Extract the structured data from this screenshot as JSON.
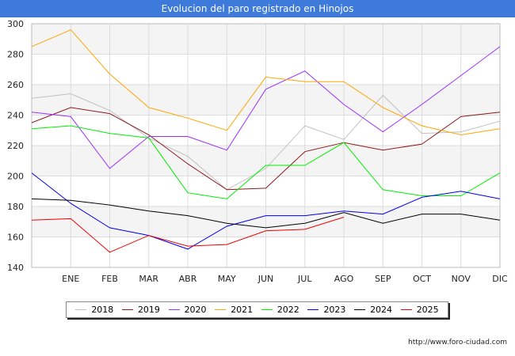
{
  "chart_data": {
    "type": "line",
    "title": "Evolucion del paro registrado en Hinojos",
    "categories": [
      "",
      "ENE",
      "FEB",
      "MAR",
      "ABR",
      "MAY",
      "JUN",
      "JUL",
      "AGO",
      "SEP",
      "OCT",
      "NOV",
      "DIC"
    ],
    "ylim": [
      140,
      300
    ],
    "yticks": [
      140,
      160,
      180,
      200,
      220,
      240,
      260,
      280,
      300
    ],
    "grid": true,
    "legend_position": "bottom",
    "series": [
      {
        "name": "2018",
        "color": "#c0c0c0",
        "values": [
          251,
          254,
          243,
          225,
          213,
          191,
          205,
          233,
          224,
          253,
          228,
          229,
          236
        ]
      },
      {
        "name": "2019",
        "color": "#8b1a1a",
        "values": [
          235,
          245,
          241,
          227,
          208,
          191,
          192,
          216,
          222,
          217,
          221,
          239,
          242
        ]
      },
      {
        "name": "2020",
        "color": "#9b30ff",
        "values": [
          242,
          239,
          205,
          226,
          226,
          217,
          257,
          269,
          247,
          229,
          247,
          266,
          285
        ]
      },
      {
        "name": "2021",
        "color": "#ffa500",
        "values": [
          285,
          296,
          267,
          245,
          238,
          230,
          265,
          262,
          262,
          245,
          233,
          227,
          231
        ]
      },
      {
        "name": "2022",
        "color": "#00ee00",
        "values": [
          231,
          233,
          228,
          225,
          189,
          185,
          207,
          207,
          222,
          191,
          187,
          187,
          202
        ]
      },
      {
        "name": "2023",
        "color": "#0000ee",
        "values": [
          202,
          182,
          166,
          161,
          152,
          167,
          174,
          174,
          177,
          175,
          186,
          190,
          185
        ]
      },
      {
        "name": "2024",
        "color": "#000000",
        "values": [
          185,
          184,
          181,
          177,
          174,
          169,
          166,
          169,
          176,
          169,
          175,
          175,
          171
        ]
      },
      {
        "name": "2025",
        "color": "#ee0000",
        "values": [
          171,
          172,
          150,
          161,
          154,
          155,
          164,
          165,
          173,
          null,
          null,
          null,
          null
        ]
      }
    ]
  },
  "source": "http://www.foro-ciudad.com"
}
